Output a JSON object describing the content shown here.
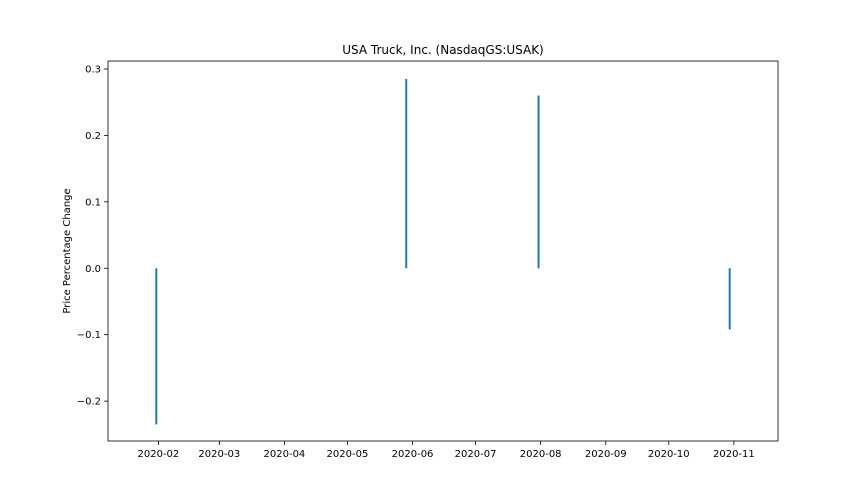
{
  "chart_data": {
    "type": "bar",
    "title": "USA Truck, Inc. (NasdaqGS:USAK)",
    "xlabel": "",
    "ylabel": "Price Percentage Change",
    "x_ticks": [
      "2020-02",
      "2020-03",
      "2020-04",
      "2020-05",
      "2020-06",
      "2020-07",
      "2020-08",
      "2020-09",
      "2020-10",
      "2020-11"
    ],
    "y_ticks": [
      -0.2,
      -0.1,
      0.0,
      0.1,
      0.2,
      0.3
    ],
    "y_tick_labels": [
      "−0.2",
      "−0.1",
      "0.0",
      "0.1",
      "0.2",
      "0.3"
    ],
    "xlim": [
      "2020-01-08",
      "2020-11-22"
    ],
    "ylim": [
      -0.26,
      0.312
    ],
    "grid": false,
    "color": "#1f77b4",
    "series": [
      {
        "points": [
          {
            "date": "2020-01-31",
            "value": -0.235
          },
          {
            "date": "2020-05-29",
            "value": 0.285
          },
          {
            "date": "2020-07-31",
            "value": 0.26
          },
          {
            "date": "2020-10-30",
            "value": -0.092
          }
        ]
      }
    ]
  }
}
